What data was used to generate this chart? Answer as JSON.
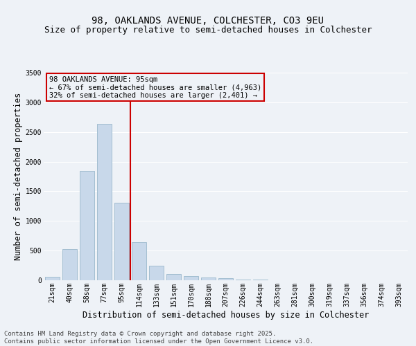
{
  "title_line1": "98, OAKLANDS AVENUE, COLCHESTER, CO3 9EU",
  "title_line2": "Size of property relative to semi-detached houses in Colchester",
  "xlabel": "Distribution of semi-detached houses by size in Colchester",
  "ylabel": "Number of semi-detached properties",
  "footer_line1": "Contains HM Land Registry data © Crown copyright and database right 2025.",
  "footer_line2": "Contains public sector information licensed under the Open Government Licence v3.0.",
  "categories": [
    "21sqm",
    "40sqm",
    "58sqm",
    "77sqm",
    "95sqm",
    "114sqm",
    "133sqm",
    "151sqm",
    "170sqm",
    "188sqm",
    "207sqm",
    "226sqm",
    "244sqm",
    "263sqm",
    "281sqm",
    "300sqm",
    "319sqm",
    "337sqm",
    "356sqm",
    "374sqm",
    "393sqm"
  ],
  "values": [
    60,
    525,
    1840,
    2640,
    1310,
    640,
    240,
    100,
    75,
    45,
    30,
    15,
    10,
    5,
    2,
    1,
    0,
    0,
    0,
    0,
    0
  ],
  "bar_color": "#c8d8ea",
  "bar_edge_color": "#9ab8cc",
  "vline_color": "#cc0000",
  "annotation_text_line1": "98 OAKLANDS AVENUE: 95sqm",
  "annotation_text_line2": "← 67% of semi-detached houses are smaller (4,963)",
  "annotation_text_line3": "32% of semi-detached houses are larger (2,401) →",
  "annotation_box_color": "#cc0000",
  "ylim": [
    0,
    3500
  ],
  "yticks": [
    0,
    500,
    1000,
    1500,
    2000,
    2500,
    3000,
    3500
  ],
  "bg_color": "#eef2f7",
  "grid_color": "#ffffff",
  "title_fontsize": 10,
  "subtitle_fontsize": 9,
  "axis_label_fontsize": 8.5,
  "tick_fontsize": 7,
  "footer_fontsize": 6.5,
  "annotation_fontsize": 7.5
}
